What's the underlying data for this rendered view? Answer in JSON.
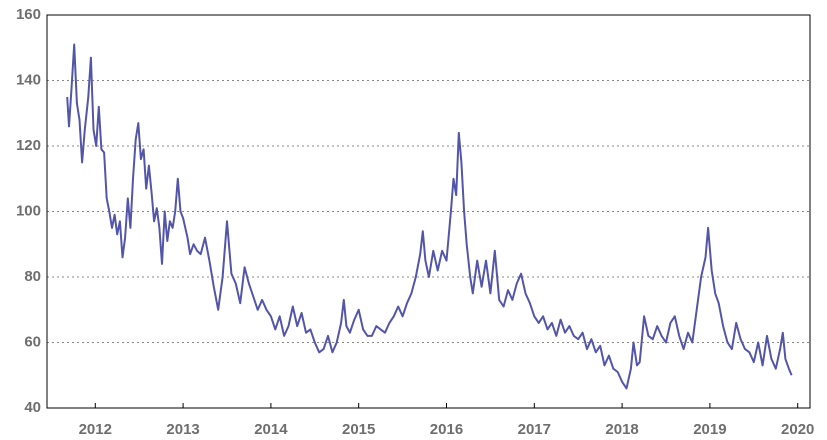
{
  "chart_data": {
    "type": "line",
    "x": [
      2011.68,
      2011.7,
      2011.73,
      2011.76,
      2011.79,
      2011.82,
      2011.85,
      2011.88,
      2011.92,
      2011.95,
      2011.98,
      2012.01,
      2012.04,
      2012.07,
      2012.1,
      2012.13,
      2012.16,
      2012.19,
      2012.22,
      2012.25,
      2012.28,
      2012.31,
      2012.34,
      2012.37,
      2012.4,
      2012.43,
      2012.46,
      2012.49,
      2012.52,
      2012.55,
      2012.58,
      2012.61,
      2012.64,
      2012.67,
      2012.7,
      2012.73,
      2012.76,
      2012.79,
      2012.82,
      2012.85,
      2012.88,
      2012.91,
      2012.94,
      2012.97,
      2013.0,
      2013.05,
      2013.08,
      2013.12,
      2013.16,
      2013.2,
      2013.25,
      2013.3,
      2013.35,
      2013.4,
      2013.45,
      2013.5,
      2013.55,
      2013.6,
      2013.65,
      2013.7,
      2013.75,
      2013.8,
      2013.85,
      2013.9,
      2013.95,
      2014.0,
      2014.05,
      2014.1,
      2014.15,
      2014.2,
      2014.25,
      2014.3,
      2014.35,
      2014.4,
      2014.45,
      2014.5,
      2014.55,
      2014.6,
      2014.65,
      2014.7,
      2014.75,
      2014.8,
      2014.83,
      2014.86,
      2014.9,
      2014.95,
      2015.0,
      2015.05,
      2015.1,
      2015.15,
      2015.2,
      2015.25,
      2015.3,
      2015.35,
      2015.4,
      2015.45,
      2015.5,
      2015.55,
      2015.6,
      2015.65,
      2015.7,
      2015.73,
      2015.76,
      2015.8,
      2015.85,
      2015.9,
      2015.95,
      2016.0,
      2016.05,
      2016.08,
      2016.11,
      2016.14,
      2016.17,
      2016.2,
      2016.23,
      2016.27,
      2016.3,
      2016.35,
      2016.4,
      2016.45,
      2016.5,
      2016.55,
      2016.6,
      2016.65,
      2016.7,
      2016.75,
      2016.8,
      2016.85,
      2016.9,
      2016.95,
      2017.0,
      2017.05,
      2017.1,
      2017.15,
      2017.2,
      2017.25,
      2017.3,
      2017.35,
      2017.4,
      2017.45,
      2017.5,
      2017.55,
      2017.6,
      2017.65,
      2017.7,
      2017.75,
      2017.8,
      2017.85,
      2017.9,
      2017.95,
      2018.0,
      2018.05,
      2018.1,
      2018.13,
      2018.17,
      2018.2,
      2018.25,
      2018.3,
      2018.35,
      2018.4,
      2018.45,
      2018.5,
      2018.55,
      2018.6,
      2018.65,
      2018.7,
      2018.75,
      2018.8,
      2018.85,
      2018.9,
      2018.95,
      2018.98,
      2019.02,
      2019.06,
      2019.1,
      2019.15,
      2019.2,
      2019.25,
      2019.3,
      2019.35,
      2019.4,
      2019.45,
      2019.5,
      2019.55,
      2019.6,
      2019.65,
      2019.7,
      2019.75,
      2019.8,
      2019.83,
      2019.86,
      2019.9,
      2019.93
    ],
    "series": [
      {
        "color": "#5356a8",
        "values": [
          135,
          126,
          138,
          151,
          133,
          128,
          115,
          125,
          135,
          147,
          125,
          120,
          132,
          119,
          118,
          104,
          100,
          95,
          99,
          93,
          97,
          86,
          92,
          104,
          95,
          110,
          122,
          127,
          116,
          119,
          107,
          114,
          106,
          97,
          101,
          95,
          84,
          100,
          91,
          97,
          95,
          100,
          110,
          100,
          98,
          92,
          87,
          90,
          88,
          87,
          92,
          85,
          77,
          70,
          80,
          97,
          81,
          78,
          72,
          83,
          78,
          74,
          70,
          73,
          70,
          68,
          64,
          68,
          62,
          65,
          71,
          65,
          69,
          63,
          64,
          60,
          57,
          58,
          62,
          57,
          60,
          66,
          73,
          65,
          63,
          67,
          70,
          64,
          62,
          62,
          65,
          64,
          63,
          66,
          68,
          71,
          68,
          72,
          75,
          80,
          87,
          94,
          85,
          80,
          88,
          82,
          88,
          85,
          100,
          110,
          105,
          124,
          115,
          100,
          90,
          80,
          75,
          85,
          77,
          85,
          75,
          88,
          73,
          71,
          76,
          73,
          78,
          81,
          75,
          72,
          68,
          66,
          68,
          64,
          66,
          62,
          67,
          63,
          65,
          62,
          61,
          63,
          58,
          61,
          57,
          59,
          53,
          56,
          52,
          51,
          48,
          46,
          52,
          60,
          53,
          54,
          68,
          62,
          61,
          65,
          62,
          60,
          66,
          68,
          62,
          58,
          63,
          60,
          70,
          80,
          86,
          95,
          82,
          75,
          72,
          65,
          60,
          58,
          66,
          61,
          58,
          57,
          54,
          60,
          53,
          62,
          55,
          52,
          58,
          63,
          55,
          52,
          50
        ]
      }
    ],
    "xlim": [
      2011.45,
      2020.14
    ],
    "xticks": [
      2012,
      2013,
      2014,
      2015,
      2016,
      2017,
      2018,
      2019,
      2020
    ],
    "ylim": [
      40,
      160
    ],
    "yticks": [
      40,
      60,
      80,
      100,
      120,
      140,
      160
    ],
    "grid": true
  }
}
